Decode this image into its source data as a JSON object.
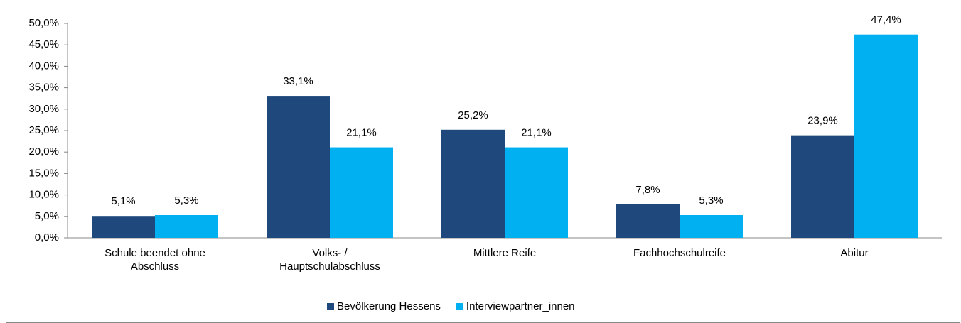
{
  "chart_data": {
    "type": "bar",
    "categories": [
      "Schule beendet ohne Abschluss",
      "Volks- / Hauptschulabschluss",
      "Mittlere Reife",
      "Fachhochschulreife",
      "Abitur"
    ],
    "series": [
      {
        "name": "Bevölkerung Hessens",
        "color": "#1f497d",
        "values": [
          5.1,
          33.1,
          25.2,
          7.8,
          23.9
        ],
        "value_labels": [
          "5,1%",
          "33,1%",
          "25,2%",
          "7,8%",
          "23,9%"
        ]
      },
      {
        "name": "Interviewpartner_innen",
        "color": "#00b0f0",
        "values": [
          5.3,
          21.1,
          21.1,
          5.3,
          47.4
        ],
        "value_labels": [
          "5,3%",
          "21,1%",
          "21,1%",
          "5,3%",
          "47,4%"
        ]
      }
    ],
    "ylim": [
      0,
      50
    ],
    "yticks": [
      {
        "value": 0,
        "label": "0,0%"
      },
      {
        "value": 5,
        "label": "5,0%"
      },
      {
        "value": 10,
        "label": "10,0%"
      },
      {
        "value": 15,
        "label": "15,0%"
      },
      {
        "value": 20,
        "label": "20,0%"
      },
      {
        "value": 25,
        "label": "25,0%"
      },
      {
        "value": 30,
        "label": "30,0%"
      },
      {
        "value": 35,
        "label": "35,0%"
      },
      {
        "value": 40,
        "label": "40,0%"
      },
      {
        "value": 45,
        "label": "45,0%"
      },
      {
        "value": 50,
        "label": "50,0%"
      }
    ],
    "grid": false,
    "legend": "bottom"
  }
}
